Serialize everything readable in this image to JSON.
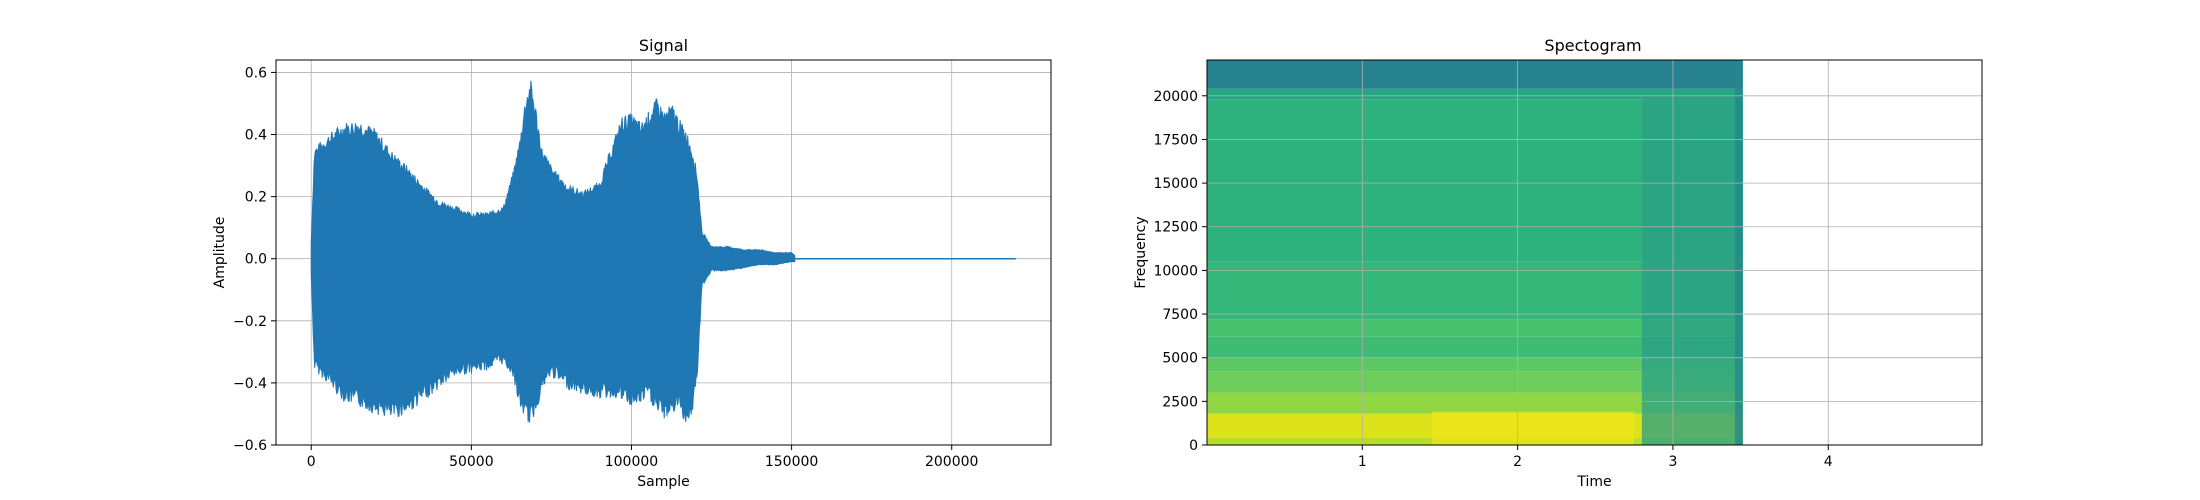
{
  "chart_data": [
    {
      "type": "line",
      "title": "Signal",
      "xlabel": "Sample",
      "ylabel": "Amplitude",
      "xlim": [
        -11000,
        231000
      ],
      "ylim": [
        -0.6,
        0.64
      ],
      "xticks": [
        0,
        50000,
        100000,
        150000,
        200000
      ],
      "yticks": [
        -0.6,
        -0.4,
        -0.2,
        0.0,
        0.2,
        0.4,
        0.6
      ],
      "xtick_labels": [
        "0",
        "50000",
        "100000",
        "150000",
        "200000"
      ],
      "ytick_labels": [
        "−0.6",
        "−0.4",
        "−0.2",
        "0.0",
        "0.2",
        "0.4",
        "0.6"
      ],
      "grid": true,
      "color": "#1f77b4",
      "envelope": {
        "x": [
          0,
          1000,
          5000,
          10000,
          15000,
          20000,
          25000,
          30000,
          35000,
          40000,
          45000,
          50000,
          55000,
          60000,
          63000,
          65000,
          67000,
          68500,
          70000,
          72000,
          75000,
          80000,
          85000,
          90000,
          95000,
          97000,
          100000,
          103000,
          105000,
          108000,
          110000,
          113000,
          115000,
          117000,
          119000,
          120500,
          122000,
          125000,
          130000,
          135000,
          140000,
          145000,
          150000,
          151000,
          220000
        ],
        "upper": [
          0.05,
          0.36,
          0.4,
          0.44,
          0.45,
          0.42,
          0.35,
          0.3,
          0.24,
          0.19,
          0.17,
          0.15,
          0.15,
          0.17,
          0.28,
          0.38,
          0.53,
          0.58,
          0.5,
          0.36,
          0.3,
          0.24,
          0.22,
          0.25,
          0.4,
          0.46,
          0.47,
          0.44,
          0.47,
          0.52,
          0.48,
          0.5,
          0.45,
          0.42,
          0.36,
          0.28,
          0.09,
          0.04,
          0.04,
          0.03,
          0.03,
          0.02,
          0.02,
          0.01,
          0.0
        ],
        "lower": [
          -0.05,
          -0.36,
          -0.4,
          -0.46,
          -0.48,
          -0.5,
          -0.52,
          -0.5,
          -0.46,
          -0.42,
          -0.38,
          -0.37,
          -0.36,
          -0.34,
          -0.38,
          -0.48,
          -0.52,
          -0.54,
          -0.5,
          -0.43,
          -0.38,
          -0.42,
          -0.44,
          -0.45,
          -0.45,
          -0.46,
          -0.48,
          -0.47,
          -0.45,
          -0.5,
          -0.52,
          -0.5,
          -0.48,
          -0.54,
          -0.5,
          -0.4,
          -0.09,
          -0.04,
          -0.04,
          -0.03,
          -0.02,
          -0.02,
          -0.01,
          -0.01,
          0.0
        ]
      }
    },
    {
      "type": "heatmap",
      "title": "Spectogram",
      "xlabel": "Time",
      "ylabel": "Frequency",
      "xlim": [
        0,
        4.99
      ],
      "ylim": [
        0,
        22050
      ],
      "xticks": [
        1,
        2,
        3,
        4
      ],
      "yticks": [
        0,
        2500,
        5000,
        7500,
        10000,
        12500,
        15000,
        17500,
        20000
      ],
      "xtick_labels": [
        "1",
        "2",
        "3",
        "4"
      ],
      "ytick_labels": [
        "0",
        "2500",
        "5000",
        "7500",
        "10000",
        "12500",
        "15000",
        "17500",
        "20000"
      ],
      "grid": true,
      "data_extent_time": [
        0,
        3.45
      ],
      "bands": [
        {
          "f0": 0,
          "f1": 400,
          "color": "#b5de2b"
        },
        {
          "f0": 400,
          "f1": 1800,
          "color": "#dce319"
        },
        {
          "f0": 1800,
          "f1": 3000,
          "color": "#8fd744"
        },
        {
          "f0": 3000,
          "f1": 4200,
          "color": "#6ccd5a"
        },
        {
          "f0": 4200,
          "f1": 5000,
          "color": "#5ec962"
        },
        {
          "f0": 5000,
          "f1": 6200,
          "color": "#3fbc73"
        },
        {
          "f0": 6200,
          "f1": 7200,
          "color": "#48c16e"
        },
        {
          "f0": 7200,
          "f1": 10500,
          "color": "#35b779"
        },
        {
          "f0": 10500,
          "f1": 19800,
          "color": "#2db27d"
        },
        {
          "f0": 19800,
          "f1": 20400,
          "color": "#25a784"
        },
        {
          "f0": 20400,
          "f1": 22050,
          "color": "#26828e"
        }
      ],
      "highlights": [
        {
          "t0": 1.45,
          "t1": 2.75,
          "f0": 0,
          "f1": 1900,
          "color": "#efe51c"
        },
        {
          "t0": 2.8,
          "t1": 3.45,
          "f0": 0,
          "f1": 20000,
          "color": "#2a9f86"
        },
        {
          "t0": 3.4,
          "t1": 3.45,
          "f0": 0,
          "f1": 22050,
          "color": "#24868e"
        }
      ]
    }
  ]
}
